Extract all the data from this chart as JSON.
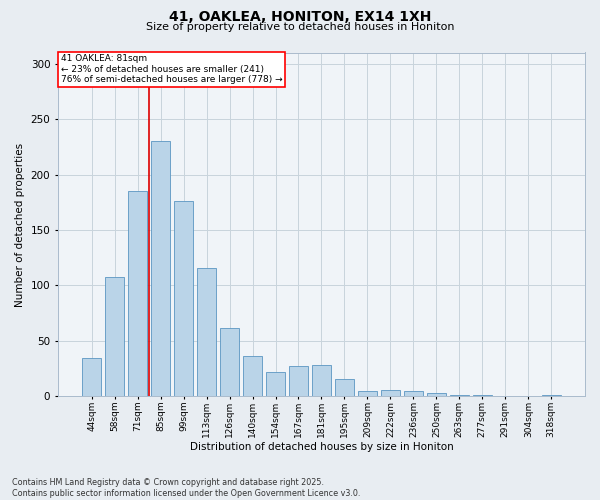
{
  "title1": "41, OAKLEA, HONITON, EX14 1XH",
  "title2": "Size of property relative to detached houses in Honiton",
  "xlabel": "Distribution of detached houses by size in Honiton",
  "ylabel": "Number of detached properties",
  "footer": "Contains HM Land Registry data © Crown copyright and database right 2025.\nContains public sector information licensed under the Open Government Licence v3.0.",
  "categories": [
    "44sqm",
    "58sqm",
    "71sqm",
    "85sqm",
    "99sqm",
    "113sqm",
    "126sqm",
    "140sqm",
    "154sqm",
    "167sqm",
    "181sqm",
    "195sqm",
    "209sqm",
    "222sqm",
    "236sqm",
    "250sqm",
    "263sqm",
    "277sqm",
    "291sqm",
    "304sqm",
    "318sqm"
  ],
  "values": [
    35,
    108,
    185,
    230,
    176,
    116,
    62,
    36,
    22,
    27,
    28,
    16,
    5,
    6,
    5,
    3,
    1,
    1,
    0,
    0,
    1
  ],
  "bar_color": "#bad4e8",
  "bar_edge_color": "#5b96c2",
  "vline_index": 2,
  "vline_color": "#dd0000",
  "annotation_text_line1": "41 OAKLEA: 81sqm",
  "annotation_text_line2": "← 23% of detached houses are smaller (241)",
  "annotation_text_line3": "76% of semi-detached houses are larger (778) →",
  "ylim_max": 310,
  "yticks": [
    0,
    50,
    100,
    150,
    200,
    250,
    300
  ],
  "background_color": "#e8edf2",
  "plot_background_color": "#f0f4f8",
  "grid_color": "#c8d4dc"
}
